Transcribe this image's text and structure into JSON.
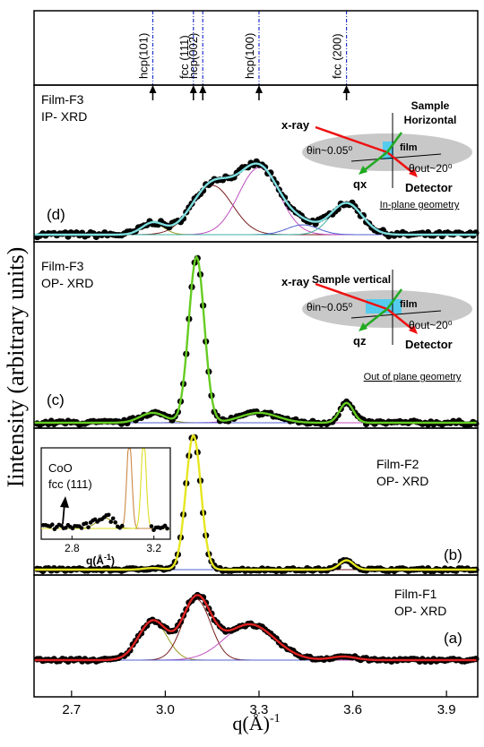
{
  "chart_data": {
    "type": "scatter",
    "xlabel": "q(Å)",
    "xlabel_exp": "-1",
    "ylabel": "Iintensity (arbitrary units)",
    "xlim": [
      2.58,
      4.0
    ],
    "xticks": [
      "2.7",
      "3.0",
      "3.3",
      "3.6",
      "3.9"
    ],
    "xtick_values": [
      2.7,
      3.0,
      3.3,
      3.6,
      3.9
    ],
    "reference_lines": [
      {
        "label": "hcp(101)",
        "x": 2.96
      },
      {
        "label": "fcc (111)",
        "x": 3.09
      },
      {
        "label": "hcp(002)",
        "x": 3.12
      },
      {
        "label": "hcp(100)",
        "x": 3.3
      },
      {
        "label": "fcc (200)",
        "x": 3.58
      }
    ],
    "panels": [
      {
        "id": "d",
        "tag": "(d)",
        "title": [
          "Film-F3",
          "IP- XRD"
        ],
        "fit_color": "#7fdfe0",
        "baseline": 0.0,
        "peaks": [
          {
            "center": 2.96,
            "height": 0.12,
            "width": 0.035,
            "color": "#9a9a20"
          },
          {
            "center": 3.15,
            "height": 0.5,
            "width": 0.065,
            "color": "#7a1f1f"
          },
          {
            "center": 3.3,
            "height": 0.68,
            "width": 0.065,
            "color": "#c050c0"
          },
          {
            "center": 3.44,
            "height": 0.1,
            "width": 0.05,
            "color": "#5060d0"
          },
          {
            "center": 3.58,
            "height": 0.32,
            "width": 0.05,
            "color": "#40b0a0"
          }
        ],
        "inset": {
          "title_line1": "Sample",
          "title_line2": "Horizontal",
          "xray": "x-ray",
          "film": "film",
          "theta_in": "θin~0.05⁰",
          "theta_out": "θout~20⁰",
          "q_label": "qx",
          "detector": "Detector",
          "caption": "In-plane geometry"
        }
      },
      {
        "id": "c",
        "tag": "(c)",
        "title": [
          "Film-F3",
          "OP- XRD"
        ],
        "fit_color": "#66cc22",
        "baseline": 0.0,
        "peaks": [
          {
            "center": 2.96,
            "height": 0.06,
            "width": 0.04,
            "color": "#9a9a20"
          },
          {
            "center": 3.1,
            "height": 1.0,
            "width": 0.025,
            "color": "#7a1f1f"
          },
          {
            "center": 3.3,
            "height": 0.06,
            "width": 0.06,
            "color": "#c050c0"
          },
          {
            "center": 3.58,
            "height": 0.12,
            "width": 0.022,
            "color": "#5060d0"
          }
        ],
        "inset": {
          "title_line1": "Sample vertical",
          "xray": "x-ray",
          "film": "film",
          "theta_in": "θin~0.05⁰",
          "theta_out": "θout~20⁰",
          "q_label": "qz",
          "detector": "Detector",
          "caption": "Out of plane geometry"
        }
      },
      {
        "id": "b",
        "tag": "(b)",
        "title": [
          "Film-F2",
          "OP- XRD"
        ],
        "fit_color": "#e6e622",
        "baseline": 0.0,
        "peaks": [
          {
            "center": 2.96,
            "height": 0.012,
            "width": 0.03,
            "color": "#9a9a20"
          },
          {
            "center": 3.09,
            "height": 1.0,
            "width": 0.024,
            "color": "#7a1f1f"
          },
          {
            "center": 3.58,
            "height": 0.07,
            "width": 0.022,
            "color": "#5060d0"
          }
        ],
        "inset": {
          "title_line1": "CoO",
          "title_line2": "fcc (111)",
          "xlabel": "q(Å",
          "xlabel_exp": "-1",
          "xticks": [
            "2.8",
            "3.2"
          ],
          "xtick_values": [
            2.8,
            3.2
          ],
          "xlim": [
            2.65,
            3.28
          ]
        }
      },
      {
        "id": "a",
        "tag": "(a)",
        "title": [
          "Film-F1",
          "OP- XRD"
        ],
        "fit_color": "#dd2222",
        "baseline": 0.0,
        "peaks": [
          {
            "center": 2.96,
            "height": 0.55,
            "width": 0.045,
            "color": "#9a9a20"
          },
          {
            "center": 3.1,
            "height": 0.85,
            "width": 0.045,
            "color": "#7a1f1f"
          },
          {
            "center": 3.27,
            "height": 0.5,
            "width": 0.08,
            "color": "#c050c0"
          },
          {
            "center": 3.57,
            "height": 0.05,
            "width": 0.04,
            "color": "#5060d0"
          }
        ]
      }
    ]
  }
}
